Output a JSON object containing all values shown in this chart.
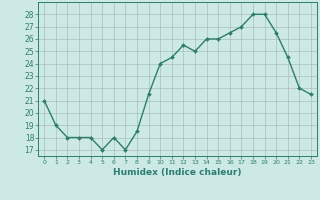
{
  "x": [
    0,
    1,
    2,
    3,
    4,
    5,
    6,
    7,
    8,
    9,
    10,
    11,
    12,
    13,
    14,
    15,
    16,
    17,
    18,
    19,
    20,
    21,
    22,
    23
  ],
  "y": [
    21,
    19,
    18,
    18,
    18,
    17,
    18,
    17,
    18.5,
    21.5,
    24,
    24.5,
    25.5,
    25,
    26,
    26,
    26.5,
    27,
    28,
    28,
    26.5,
    24.5,
    22,
    21.5
  ],
  "line_color": "#2e7d6e",
  "marker": "D",
  "marker_size": 2.0,
  "linewidth": 1.0,
  "bg_color": "#cce9e5",
  "grid_color": "#aabfbb",
  "xlabel": "Humidex (Indice chaleur)",
  "ylim": [
    16.5,
    29
  ],
  "yticks": [
    17,
    18,
    19,
    20,
    21,
    22,
    23,
    24,
    25,
    26,
    27,
    28
  ],
  "xlabel_fontsize": 6.5,
  "ytick_fontsize": 5.5,
  "xtick_fontsize": 4.5
}
